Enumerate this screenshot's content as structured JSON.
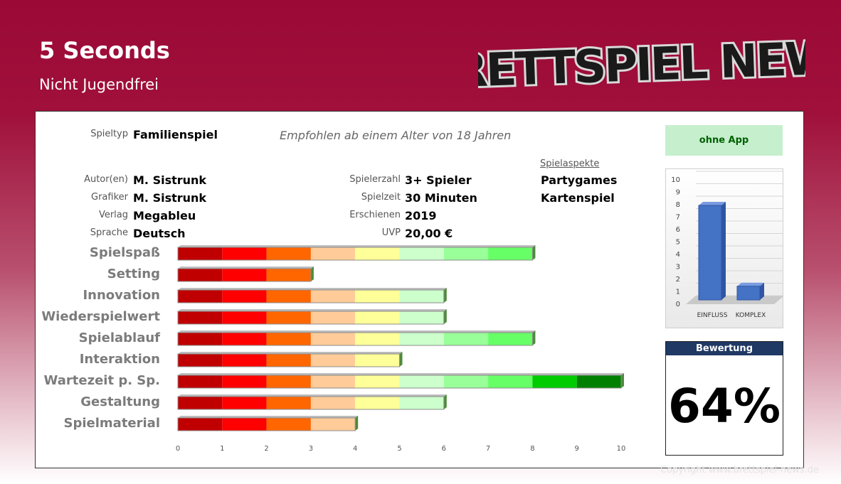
{
  "header": {
    "title": "5 Seconds",
    "subtitle": "Nicht Jugendfrei",
    "logo_text": "BRETTSPIEL NEWS"
  },
  "info": {
    "spieltyp_label": "Spieltyp",
    "spieltyp": "Familienspiel",
    "recommendation": "Empfohlen ab einem Alter von 18 Jahren",
    "autor_label": "Autor(en)",
    "autor": "M. Sistrunk",
    "grafiker_label": "Grafiker",
    "grafiker": "M. Sistrunk",
    "verlag_label": "Verlag",
    "verlag": "Megableu",
    "sprache_label": "Sprache",
    "sprache": "Deutsch",
    "spielerzahl_label": "Spielerzahl",
    "spielerzahl": "3+ Spieler",
    "spielzeit_label": "Spielzeit",
    "spielzeit": "30 Minuten",
    "erschienen_label": "Erschienen",
    "erschienen": "2019",
    "uvp_label": "UVP",
    "uvp": "20,00 €",
    "aspekte_label": "Spielaspekte",
    "aspekte": [
      "Partygames",
      "Kartenspiel"
    ]
  },
  "app_label": "ohne App",
  "rating": {
    "label": "Bewertung",
    "value": "64%"
  },
  "copyright": "Copyright www.brettspiel-news.de",
  "segment_colors": [
    "#c00000",
    "#ff0000",
    "#ff6600",
    "#ffcc99",
    "#ffff99",
    "#ccffcc",
    "#99ff99",
    "#66ff66",
    "#00cc00",
    "#008000"
  ],
  "chart_data": [
    {
      "type": "bar",
      "orientation": "horizontal",
      "categories": [
        "Spielspaß",
        "Setting",
        "Innovation",
        "Wiederspielwert",
        "Spielablauf",
        "Interaktion",
        "Wartezeit p. Sp.",
        "Gestaltung",
        "Spielmaterial"
      ],
      "values": [
        8,
        3,
        6,
        6,
        8,
        5,
        10,
        6,
        4
      ],
      "xlim": [
        0,
        10
      ],
      "xticks": [
        "0",
        "1",
        "2",
        "3",
        "4",
        "5",
        "6",
        "7",
        "8",
        "9",
        "10"
      ]
    },
    {
      "type": "bar",
      "categories": [
        "EINFLUSS",
        "KOMPLEX"
      ],
      "values": [
        7.6,
        1.1
      ],
      "ylim": [
        0,
        10
      ],
      "yticks": [
        "0",
        "1",
        "2",
        "3",
        "4",
        "5",
        "6",
        "7",
        "8",
        "9",
        "10"
      ]
    }
  ]
}
